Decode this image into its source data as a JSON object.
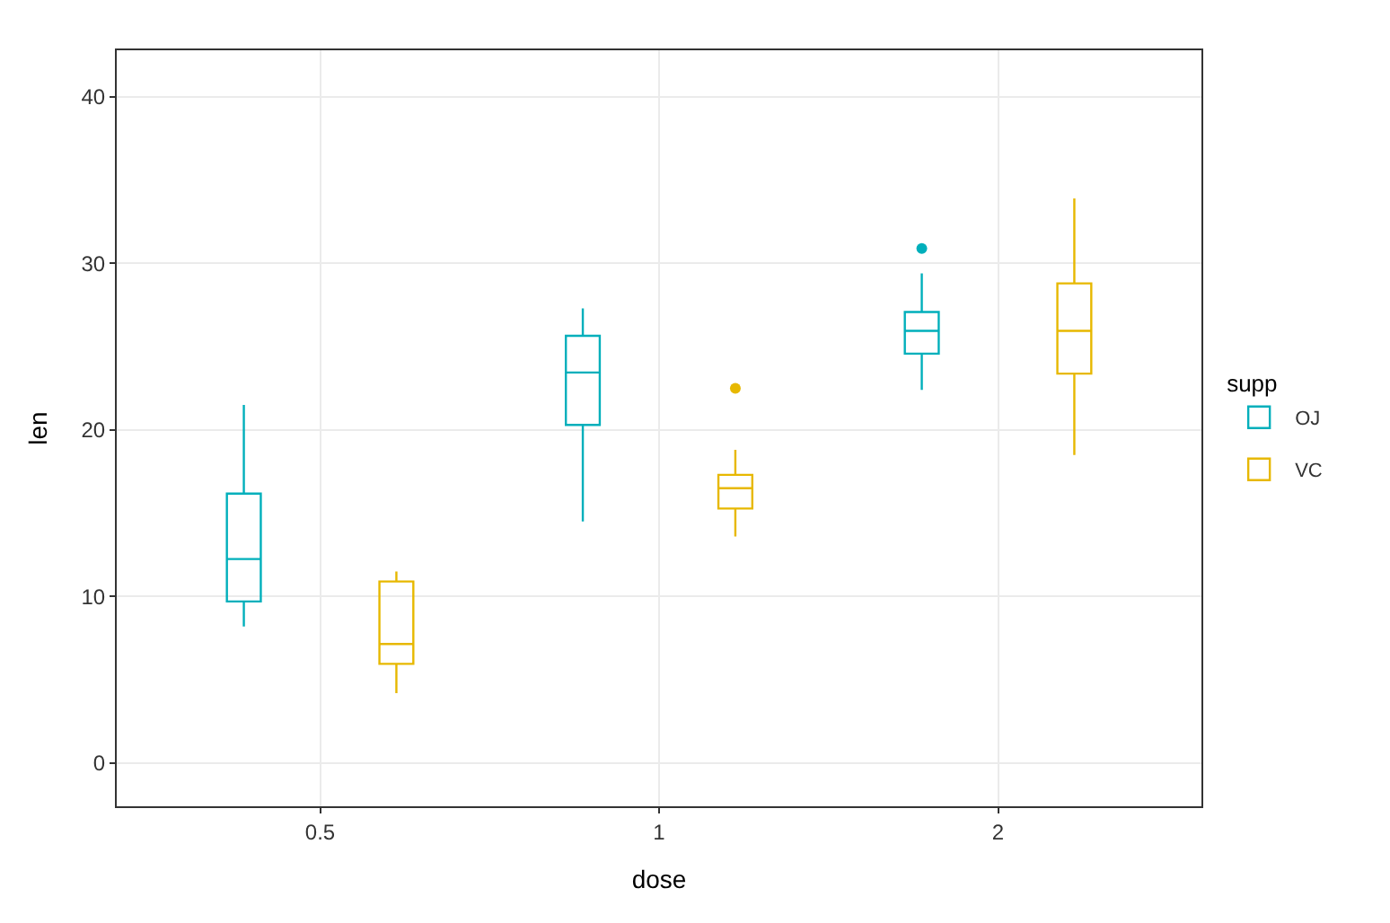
{
  "chart_data": {
    "type": "box",
    "xlabel": "dose",
    "ylabel": "len",
    "legend_title": "supp",
    "categories": [
      "0.5",
      "1",
      "2"
    ],
    "series": [
      {
        "name": "OJ",
        "color": "#00afbb",
        "boxes": [
          {
            "low": 8.2,
            "q1": 9.7,
            "median": 12.25,
            "q3": 16.18,
            "high": 21.5
          },
          {
            "low": 14.5,
            "q1": 20.3,
            "median": 23.45,
            "q3": 25.65,
            "high": 27.3
          },
          {
            "low": 22.4,
            "q1": 24.58,
            "median": 25.95,
            "q3": 27.08,
            "high": 29.4,
            "outliers": [
              30.9
            ]
          }
        ]
      },
      {
        "name": "VC",
        "color": "#e7b800",
        "boxes": [
          {
            "low": 4.2,
            "q1": 5.95,
            "median": 7.15,
            "q3": 10.9,
            "high": 11.5
          },
          {
            "low": 13.6,
            "q1": 15.28,
            "median": 16.5,
            "q3": 17.3,
            "high": 18.8,
            "outliers": [
              22.5
            ]
          },
          {
            "low": 18.5,
            "q1": 23.38,
            "median": 25.95,
            "q3": 28.8,
            "high": 33.9
          }
        ]
      }
    ],
    "ylim": [
      -2.6,
      42.8
    ],
    "yticks": [
      0,
      10,
      20,
      30,
      40
    ],
    "grid": true,
    "legend": "right"
  }
}
